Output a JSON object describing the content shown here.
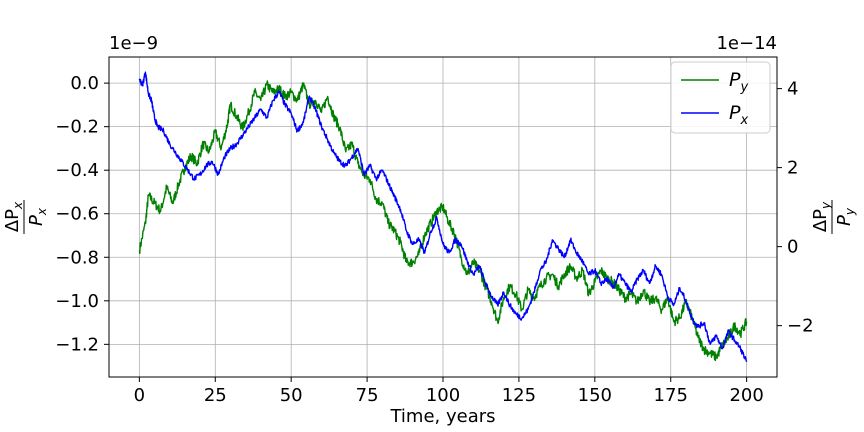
{
  "chart_data": {
    "type": "line",
    "xlabel": "Time, years",
    "x_ticks": [
      0,
      25,
      50,
      75,
      100,
      125,
      150,
      175,
      200
    ],
    "xlim": [
      -10,
      210
    ],
    "grid": true,
    "legend_placement": "top-right",
    "left_axis": {
      "offset_label": "1e−9",
      "ylim": [
        -1.35,
        0.12
      ],
      "ticks": [
        0.0,
        -0.2,
        -0.4,
        -0.6,
        -0.8,
        -1.0,
        -1.2
      ],
      "tick_labels": [
        "0.0",
        "−0.2",
        "−0.4",
        "−0.6",
        "−0.8",
        "−1.0",
        "−1.2"
      ],
      "ylabel_main": "ΔP",
      "ylabel_sub": "x",
      "ylabel_den": "P",
      "ylabel_den_sub": "x"
    },
    "right_axis": {
      "offset_label": "1e−14",
      "ylim": [
        -3.3,
        4.8
      ],
      "ticks": [
        4,
        2,
        0,
        -2
      ],
      "tick_labels": [
        "4",
        "2",
        "0",
        "−2"
      ],
      "ylabel_main": "ΔP",
      "ylabel_sub": "y",
      "ylabel_den": "P",
      "ylabel_den_sub": "y"
    },
    "series": [
      {
        "name": "P",
        "name_sub": "y",
        "axis": "right",
        "color": "#008000",
        "points": [
          [
            0,
            -0.1
          ],
          [
            2,
            0.6
          ],
          [
            3,
            1.3
          ],
          [
            5,
            1.1
          ],
          [
            7,
            0.9
          ],
          [
            9,
            1.5
          ],
          [
            11,
            1.1
          ],
          [
            13,
            1.6
          ],
          [
            15,
            2.0
          ],
          [
            17,
            2.3
          ],
          [
            19,
            2.1
          ],
          [
            21,
            2.6
          ],
          [
            23,
            2.4
          ],
          [
            25,
            2.9
          ],
          [
            27,
            2.5
          ],
          [
            29,
            3.1
          ],
          [
            30,
            3.6
          ],
          [
            32,
            3.3
          ],
          [
            34,
            3.0
          ],
          [
            36,
            3.4
          ],
          [
            38,
            3.9
          ],
          [
            40,
            3.7
          ],
          [
            42,
            4.1
          ],
          [
            44,
            3.9
          ],
          [
            46,
            4.0
          ],
          [
            48,
            3.8
          ],
          [
            50,
            3.9
          ],
          [
            52,
            3.7
          ],
          [
            54,
            4.1
          ],
          [
            56,
            3.6
          ],
          [
            58,
            3.7
          ],
          [
            60,
            3.4
          ],
          [
            62,
            3.8
          ],
          [
            64,
            3.3
          ],
          [
            66,
            3.0
          ],
          [
            68,
            2.4
          ],
          [
            70,
            2.6
          ],
          [
            72,
            2.1
          ],
          [
            74,
            1.8
          ],
          [
            76,
            1.7
          ],
          [
            78,
            1.2
          ],
          [
            80,
            1.1
          ],
          [
            82,
            0.6
          ],
          [
            84,
            0.4
          ],
          [
            86,
            0.1
          ],
          [
            88,
            -0.4
          ],
          [
            90,
            -0.4
          ],
          [
            92,
            -0.2
          ],
          [
            94,
            0.3
          ],
          [
            96,
            0.6
          ],
          [
            98,
            0.9
          ],
          [
            100,
            1.0
          ],
          [
            102,
            0.6
          ],
          [
            104,
            0.3
          ],
          [
            106,
            -0.3
          ],
          [
            108,
            -0.7
          ],
          [
            110,
            -0.4
          ],
          [
            112,
            -0.6
          ],
          [
            114,
            -1.0
          ],
          [
            116,
            -1.4
          ],
          [
            118,
            -1.9
          ],
          [
            120,
            -1.3
          ],
          [
            122,
            -1.0
          ],
          [
            124,
            -1.2
          ],
          [
            126,
            -1.6
          ],
          [
            128,
            -1.1
          ],
          [
            130,
            -1.3
          ],
          [
            132,
            -1.0
          ],
          [
            134,
            -0.8
          ],
          [
            136,
            -0.7
          ],
          [
            138,
            -1.0
          ],
          [
            140,
            -0.7
          ],
          [
            142,
            -0.5
          ],
          [
            144,
            -0.8
          ],
          [
            146,
            -0.6
          ],
          [
            148,
            -1.2
          ],
          [
            150,
            -0.9
          ],
          [
            152,
            -0.6
          ],
          [
            154,
            -0.8
          ],
          [
            156,
            -0.9
          ],
          [
            158,
            -1.1
          ],
          [
            160,
            -1.3
          ],
          [
            162,
            -1.2
          ],
          [
            164,
            -1.4
          ],
          [
            166,
            -1.1
          ],
          [
            168,
            -1.4
          ],
          [
            170,
            -1.3
          ],
          [
            172,
            -1.6
          ],
          [
            174,
            -1.3
          ],
          [
            176,
            -1.9
          ],
          [
            178,
            -1.8
          ],
          [
            180,
            -1.4
          ],
          [
            182,
            -1.8
          ],
          [
            184,
            -2.3
          ],
          [
            186,
            -2.6
          ],
          [
            188,
            -2.7
          ],
          [
            190,
            -2.8
          ],
          [
            192,
            -2.5
          ],
          [
            194,
            -2.3
          ],
          [
            196,
            -2.0
          ],
          [
            198,
            -2.2
          ],
          [
            200,
            -1.9
          ]
        ]
      },
      {
        "name": "P",
        "name_sub": "x",
        "axis": "left",
        "color": "#0000ff",
        "points": [
          [
            0,
            0.02
          ],
          [
            1,
            -0.01
          ],
          [
            2,
            0.05
          ],
          [
            3,
            -0.05
          ],
          [
            4,
            -0.08
          ],
          [
            5,
            -0.16
          ],
          [
            6,
            -0.2
          ],
          [
            8,
            -0.22
          ],
          [
            10,
            -0.28
          ],
          [
            12,
            -0.32
          ],
          [
            14,
            -0.36
          ],
          [
            16,
            -0.4
          ],
          [
            18,
            -0.44
          ],
          [
            20,
            -0.42
          ],
          [
            22,
            -0.38
          ],
          [
            24,
            -0.36
          ],
          [
            26,
            -0.42
          ],
          [
            28,
            -0.34
          ],
          [
            30,
            -0.3
          ],
          [
            32,
            -0.28
          ],
          [
            34,
            -0.24
          ],
          [
            36,
            -0.2
          ],
          [
            38,
            -0.16
          ],
          [
            40,
            -0.12
          ],
          [
            42,
            -0.16
          ],
          [
            44,
            -0.08
          ],
          [
            46,
            -0.04
          ],
          [
            48,
            -0.1
          ],
          [
            50,
            -0.14
          ],
          [
            52,
            -0.22
          ],
          [
            54,
            -0.18
          ],
          [
            56,
            -0.06
          ],
          [
            58,
            -0.12
          ],
          [
            60,
            -0.2
          ],
          [
            62,
            -0.26
          ],
          [
            64,
            -0.32
          ],
          [
            66,
            -0.36
          ],
          [
            68,
            -0.38
          ],
          [
            70,
            -0.34
          ],
          [
            72,
            -0.3
          ],
          [
            74,
            -0.42
          ],
          [
            76,
            -0.38
          ],
          [
            78,
            -0.44
          ],
          [
            80,
            -0.4
          ],
          [
            82,
            -0.46
          ],
          [
            84,
            -0.52
          ],
          [
            86,
            -0.58
          ],
          [
            88,
            -0.68
          ],
          [
            90,
            -0.74
          ],
          [
            92,
            -0.72
          ],
          [
            94,
            -0.78
          ],
          [
            96,
            -0.68
          ],
          [
            98,
            -0.62
          ],
          [
            100,
            -0.74
          ],
          [
            102,
            -0.78
          ],
          [
            104,
            -0.72
          ],
          [
            106,
            -0.74
          ],
          [
            108,
            -0.82
          ],
          [
            110,
            -0.88
          ],
          [
            112,
            -0.84
          ],
          [
            114,
            -0.92
          ],
          [
            116,
            -0.98
          ],
          [
            118,
            -1.02
          ],
          [
            120,
            -0.96
          ],
          [
            122,
            -1.02
          ],
          [
            124,
            -1.06
          ],
          [
            126,
            -1.08
          ],
          [
            128,
            -1.04
          ],
          [
            130,
            -0.96
          ],
          [
            132,
            -0.86
          ],
          [
            134,
            -0.82
          ],
          [
            136,
            -0.72
          ],
          [
            138,
            -0.76
          ],
          [
            140,
            -0.8
          ],
          [
            142,
            -0.72
          ],
          [
            144,
            -0.78
          ],
          [
            146,
            -0.82
          ],
          [
            148,
            -0.88
          ],
          [
            150,
            -0.86
          ],
          [
            152,
            -0.92
          ],
          [
            154,
            -0.9
          ],
          [
            156,
            -0.94
          ],
          [
            158,
            -0.88
          ],
          [
            160,
            -0.92
          ],
          [
            162,
            -0.96
          ],
          [
            164,
            -0.9
          ],
          [
            166,
            -0.86
          ],
          [
            168,
            -0.92
          ],
          [
            170,
            -0.84
          ],
          [
            172,
            -0.88
          ],
          [
            174,
            -0.98
          ],
          [
            176,
            -1.02
          ],
          [
            178,
            -0.94
          ],
          [
            180,
            -1.0
          ],
          [
            182,
            -1.08
          ],
          [
            184,
            -1.12
          ],
          [
            186,
            -1.1
          ],
          [
            188,
            -1.2
          ],
          [
            190,
            -1.16
          ],
          [
            192,
            -1.22
          ],
          [
            194,
            -1.14
          ],
          [
            196,
            -1.18
          ],
          [
            198,
            -1.22
          ],
          [
            200,
            -1.28
          ]
        ]
      }
    ]
  }
}
